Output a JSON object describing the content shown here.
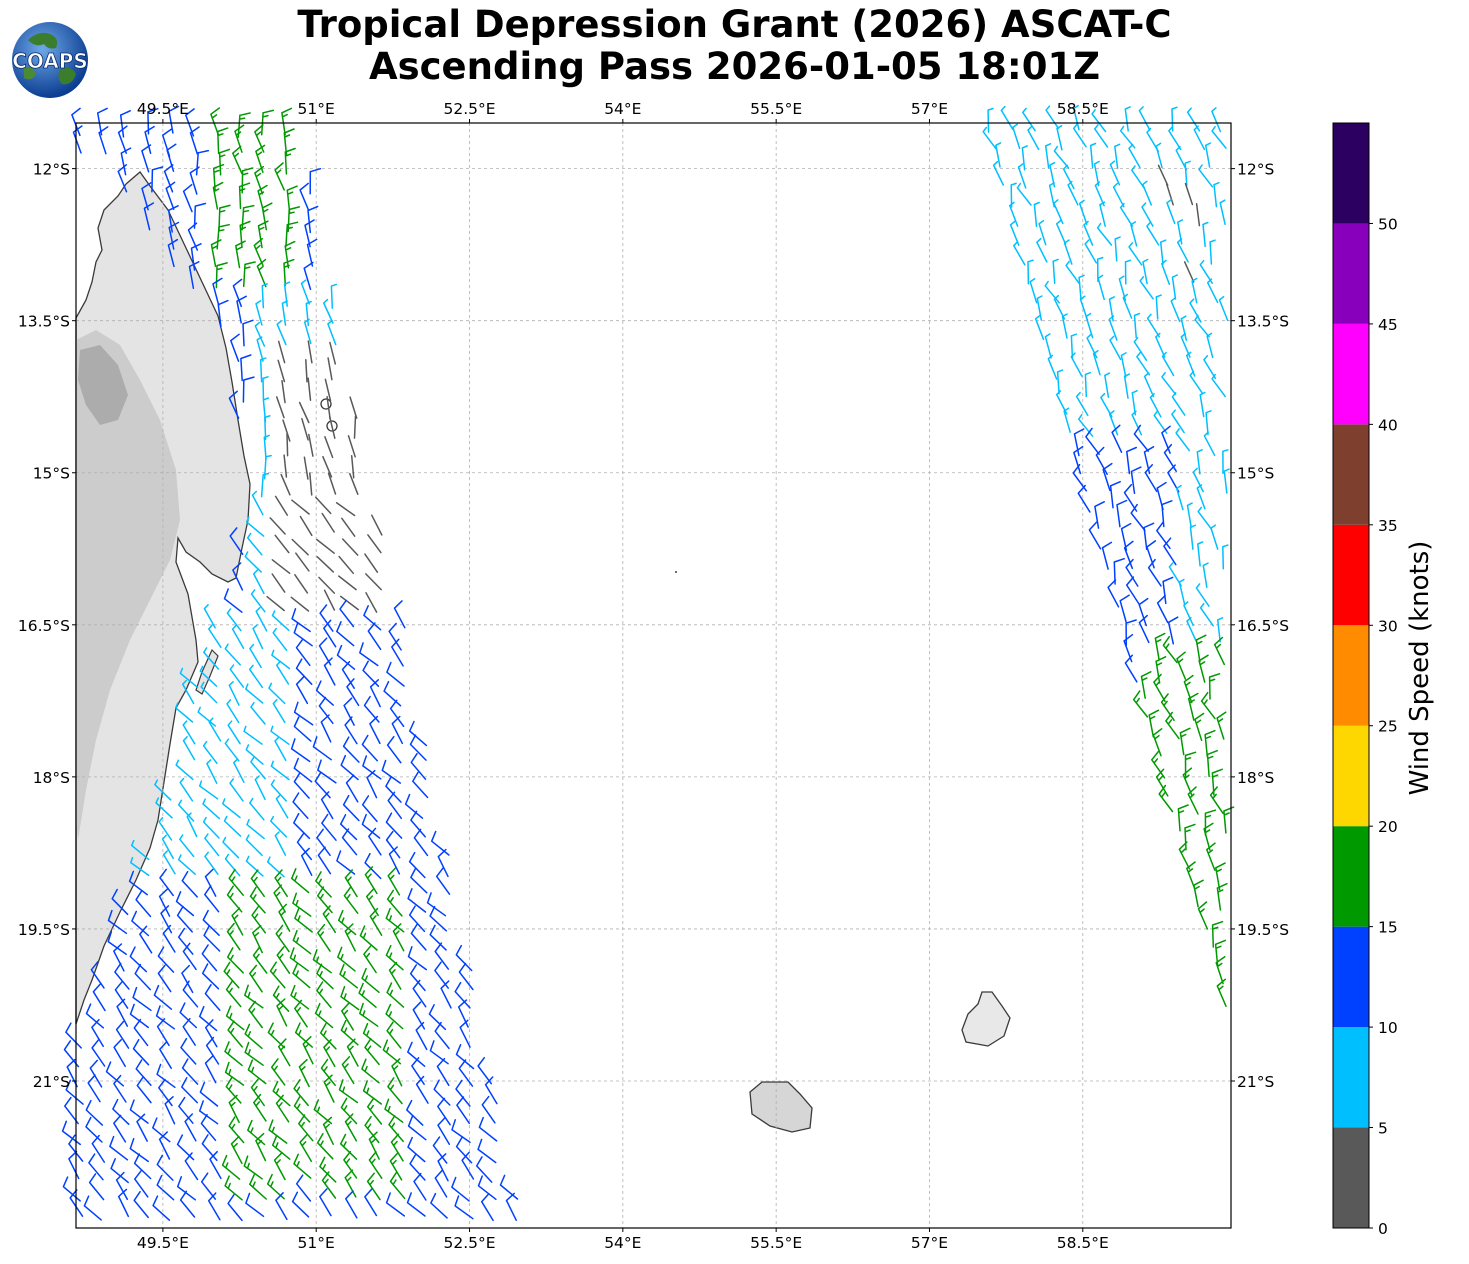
{
  "title": {
    "line1": "Tropical Depression Grant (2026) ASCAT-C",
    "line2": "Ascending Pass 2026-01-05 18:01Z"
  },
  "logo": {
    "text": "COAPS"
  },
  "map": {
    "lon_range": [
      48.65,
      59.95
    ],
    "lat_range": [
      -22.45,
      -11.55
    ],
    "lon_ticks": [
      {
        "value": 49.5,
        "label": "49.5°E"
      },
      {
        "value": 51,
        "label": "51°E"
      },
      {
        "value": 52.5,
        "label": "52.5°E"
      },
      {
        "value": 54,
        "label": "54°E"
      },
      {
        "value": 55.5,
        "label": "55.5°E"
      },
      {
        "value": 57,
        "label": "57°E"
      },
      {
        "value": 58.5,
        "label": "58.5°E"
      }
    ],
    "lat_ticks": [
      {
        "value": -12,
        "label": "12°S"
      },
      {
        "value": -13.5,
        "label": "13.5°S"
      },
      {
        "value": -15,
        "label": "15°S"
      },
      {
        "value": -16.5,
        "label": "16.5°S"
      },
      {
        "value": -18,
        "label": "18°S"
      },
      {
        "value": -19.5,
        "label": "19.5°S"
      },
      {
        "value": -21,
        "label": "21°S"
      }
    ],
    "gridlines": true,
    "land_features": [
      "Madagascar",
      "Sainte-Marie Island",
      "Réunion",
      "Mauritius"
    ],
    "swaths": [
      {
        "name": "west-swath",
        "region": "48.65–53.0°E, 11.6–22.4°S"
      },
      {
        "name": "east-swath",
        "region": "56.4–59.95°E, 11.6–20.3°S"
      }
    ]
  },
  "colorbar": {
    "label": "Wind Speed (knots)",
    "bins": [
      {
        "min": 0,
        "max": 5,
        "color": "#595959"
      },
      {
        "min": 5,
        "max": 10,
        "color": "#00bfff"
      },
      {
        "min": 10,
        "max": 15,
        "color": "#0040ff"
      },
      {
        "min": 15,
        "max": 20,
        "color": "#009900"
      },
      {
        "min": 20,
        "max": 25,
        "color": "#ffd700"
      },
      {
        "min": 25,
        "max": 30,
        "color": "#ff8c00"
      },
      {
        "min": 30,
        "max": 35,
        "color": "#ff0000"
      },
      {
        "min": 35,
        "max": 40,
        "color": "#7f3f2f"
      },
      {
        "min": 40,
        "max": 45,
        "color": "#ff00ff"
      },
      {
        "min": 45,
        "max": 50,
        "color": "#8800bb"
      },
      {
        "min": 50,
        "max": 55,
        "color": "#2b0060"
      }
    ],
    "tick_labels": [
      "0",
      "5",
      "10",
      "15",
      "20",
      "25",
      "30",
      "35",
      "40",
      "45",
      "50"
    ]
  }
}
